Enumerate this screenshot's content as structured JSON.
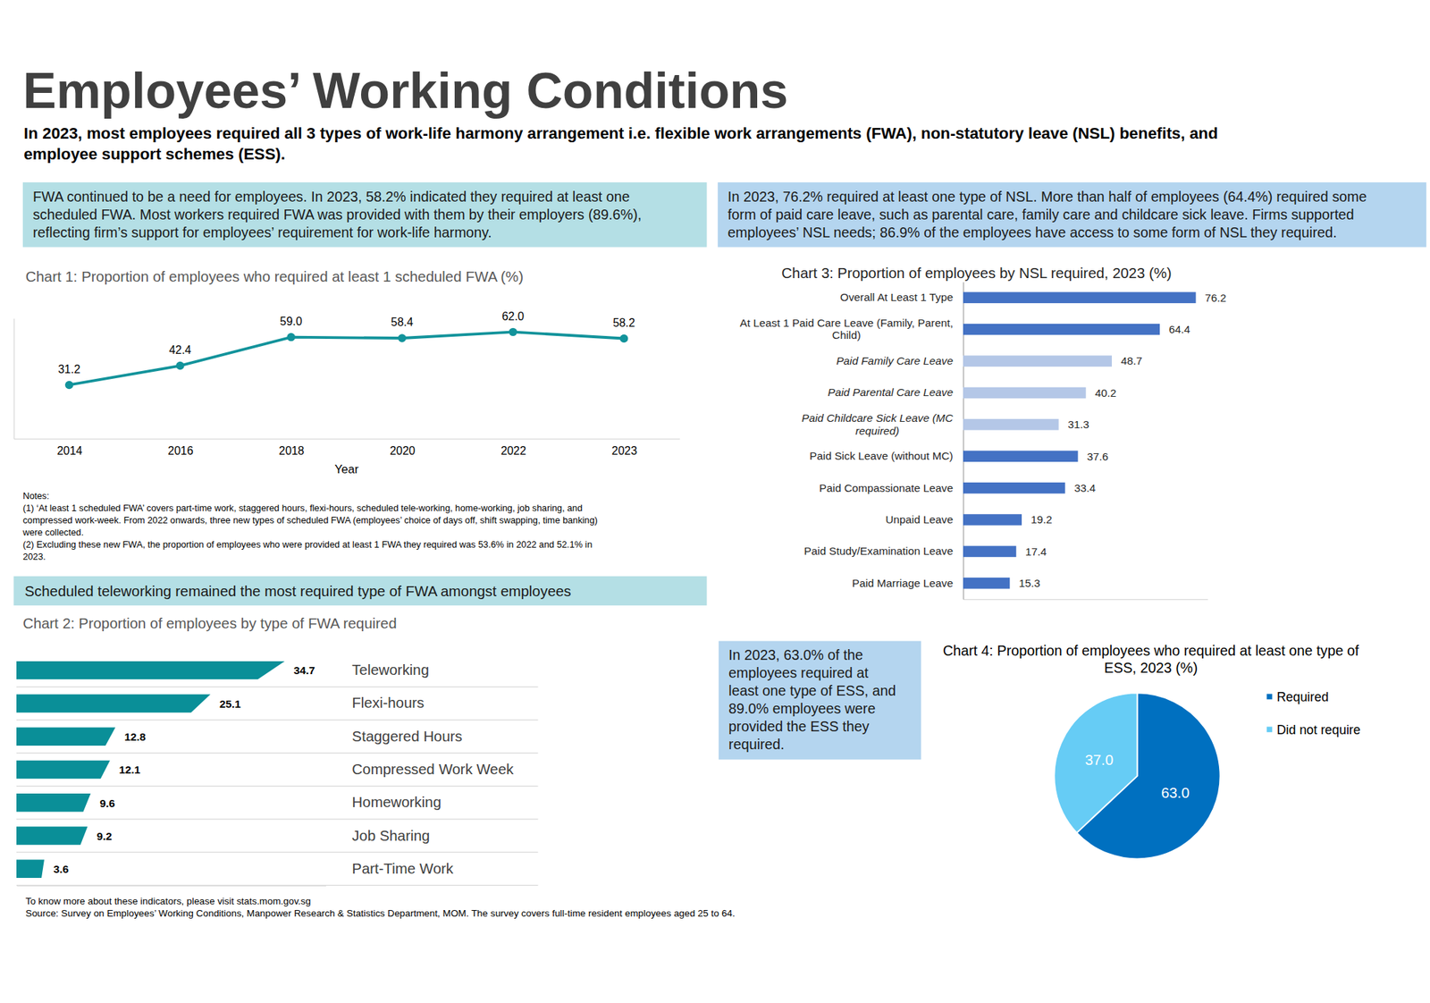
{
  "header": {
    "title": "Employees’ Working Conditions",
    "subtitle": "In 2023, most employees required all 3 types of work-life harmony arrangement i.e. flexible work arrangements (FWA), non-statutory leave (NSL) benefits, and\nemployee support schemes (ESS)."
  },
  "boxes": {
    "fwa": "FWA continued to be a need for employees. In 2023, 58.2% indicated they required at least one\nscheduled FWA. Most workers required FWA was provided with them by their employers (89.6%),\nreflecting firm’s support for employees’ requirement for work-life harmony.",
    "nsl": "In 2023, 76.2% required at least one type of NSL. More than half of employees (64.4%) required some\nform of paid care leave, such as parental care, family care and childcare sick leave. Firms supported\nemployees’ NSL needs; 86.9% of the employees have access to some form of NSL they required.",
    "telework": "Scheduled teleworking remained the most required type of FWA amongst employees",
    "ess": "In 2023, 63.0% of the\nemployees required at\nleast one type of ESS, and\n89.0% employees were\nprovided the ESS they\nrequired."
  },
  "notes": "Notes:\n(1) ‘At least 1 scheduled FWA’ covers part-time work, staggered hours, flexi-hours, scheduled tele-working, home-working, job sharing, and\ncompressed work-week. From 2022 onwards, three new types of scheduled FWA (employees’ choice of days off, shift swapping, time banking)\nwere collected.\n(2) Excluding these new FWA, the proportion of employees who were provided at least 1 FWA they required was 53.6% in 2022 and 52.1% in\n2023.",
  "footer": "To know more about these indicators, please visit stats.mom.gov.sg\nSource: Survey on Employees’ Working Conditions, Manpower Research & Statistics Department, MOM. The survey covers full-time resident employees aged 25 to 64.",
  "chart_data": [
    {
      "type": "line",
      "title": "Chart 1: Proportion of employees who required at least 1 scheduled FWA (%)",
      "categories": [
        "2014",
        "2016",
        "2018",
        "2020",
        "2022",
        "2023"
      ],
      "values": [
        31.2,
        42.4,
        59.0,
        58.4,
        62.0,
        58.2
      ],
      "value_labels": [
        "31.2",
        "42.4",
        "59.0",
        "58.4",
        "62.0",
        "58.2"
      ],
      "x_label": "Year",
      "ylim": [
        0,
        70
      ],
      "yticks": [],
      "tick_labels": "x",
      "data_labels": true,
      "color": "#12939b",
      "marker": "circle"
    },
    {
      "type": "bar",
      "orientation": "horizontal",
      "title": "Chart 2: Proportion of employees by type of FWA required",
      "categories": [
        "Teleworking",
        "Flexi-hours",
        "Staggered Hours",
        "Compressed Work Week",
        "Homeworking",
        "Job Sharing",
        "Part-Time Work"
      ],
      "values": [
        34.7,
        25.1,
        12.8,
        12.1,
        9.6,
        9.2,
        3.6
      ],
      "xlim": [
        0,
        40
      ],
      "xticks": [],
      "tick_labels": "y",
      "data_labels": true,
      "color": "#0a8f98"
    },
    {
      "type": "bar",
      "orientation": "horizontal",
      "title": "Chart 3: Proportion of employees by NSL required, 2023 (%)",
      "categories": [
        "Overall At Least 1 Type",
        "At Least 1 Paid Care Leave (Family, Parent,\nChild)",
        "Paid Family Care Leave",
        "Paid Parental Care Leave",
        "Paid Childcare Sick Leave (MC\nrequired)",
        "Paid Sick Leave (without MC)",
        "Paid Compassionate Leave",
        "Unpaid Leave",
        "Paid Study/Examination Leave",
        "Paid Marriage Leave"
      ],
      "values": [
        76.2,
        64.4,
        48.7,
        40.2,
        31.3,
        37.6,
        33.4,
        19.2,
        17.4,
        15.3
      ],
      "colors": [
        "#4472c4",
        "#4472c4",
        "#b4c7e7",
        "#b4c7e7",
        "#b4c7e7",
        "#4472c4",
        "#4472c4",
        "#4472c4",
        "#4472c4",
        "#4472c4"
      ],
      "xlim": [
        0,
        80
      ],
      "xticks": [],
      "tick_labels": "y",
      "data_labels": true
    },
    {
      "type": "pie",
      "title": "Chart 4: Proportion of employees who required at least one type of\nESS, 2023 (%)",
      "categories": [
        "Required",
        "Did not require"
      ],
      "values": [
        63.0,
        37.0
      ],
      "value_labels": [
        "63.0",
        "37.0"
      ],
      "colors": [
        "#0070c0",
        "#66ccf5"
      ],
      "legend": "right",
      "data_labels": true
    }
  ]
}
